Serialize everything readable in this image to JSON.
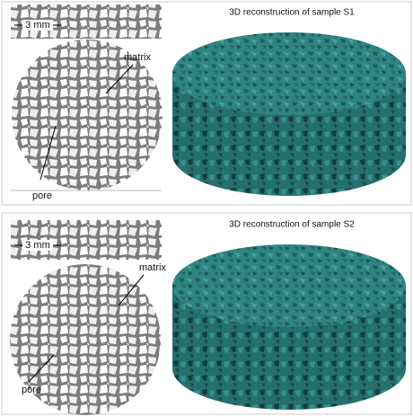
{
  "panels": [
    {
      "title": "3D reconstruction of sample S1",
      "scale_label": "3 mm",
      "matrix_label": "matrix",
      "pore_label": "pore"
    },
    {
      "title": "3D reconstruction of sample S2",
      "scale_label": "3 mm",
      "matrix_label": "matrix",
      "pore_label": "pore"
    }
  ]
}
